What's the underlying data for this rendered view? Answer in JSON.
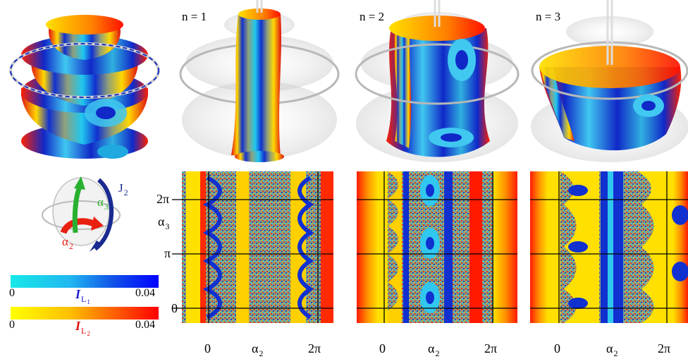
{
  "panels": {
    "n1": {
      "label": "n = 1"
    },
    "n2": {
      "label": "n = 2"
    },
    "n3": {
      "label": "n = 3"
    }
  },
  "axes": {
    "y": {
      "name": "α",
      "name_sub": "3",
      "ticks": [
        "2π",
        "π",
        "0"
      ]
    },
    "x": {
      "name": "α",
      "name_sub": "2",
      "ticks": [
        "0",
        "2π"
      ]
    }
  },
  "inset": {
    "j_label": "J",
    "j_sub": "2",
    "a3_label": "α",
    "a3_sub": "3",
    "a2_label": "α",
    "a2_sub": "2"
  },
  "colorbars": [
    {
      "name": "I",
      "name_sub": "L",
      "name_subsub": "1",
      "min": "0",
      "max": "0.04",
      "colors": [
        "#18e8e8",
        "#0000ff"
      ],
      "label_color": "#1a1ad0"
    },
    {
      "name": "I",
      "name_sub": "L",
      "name_subsub": "2",
      "min": "0",
      "max": "0.04",
      "colors": [
        "#ffff00",
        "#ff0000"
      ],
      "label_color": "#e01010"
    }
  ],
  "palette": {
    "red": "#ff1a00",
    "yellow": "#ffe000",
    "blue": "#0a1ec8",
    "cyan": "#22e0ff",
    "chaos": "#8fa07a"
  }
}
